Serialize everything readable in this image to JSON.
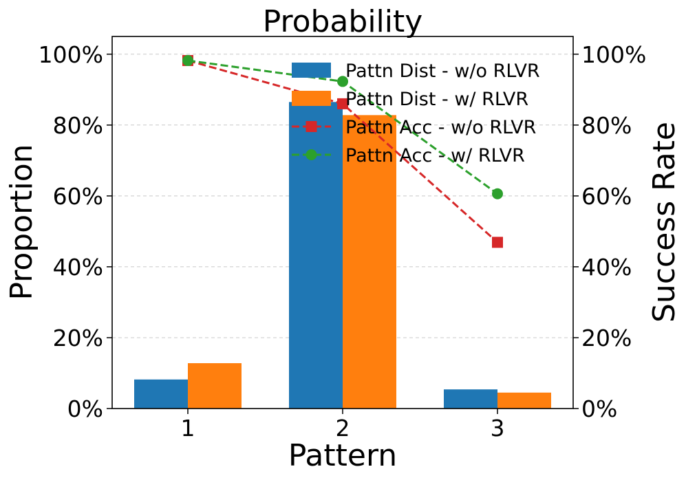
{
  "chart_data": {
    "type": "bar",
    "title": "Probability",
    "xlabel": "Pattern",
    "ylabel": "Proportion",
    "ylabel_right": "Success Rate",
    "categories": [
      "1",
      "2",
      "3"
    ],
    "ylim": [
      0,
      105
    ],
    "ylim_right": [
      0,
      105
    ],
    "y_ticks": [
      "0%",
      "20%",
      "40%",
      "60%",
      "80%",
      "100%"
    ],
    "y_tick_values": [
      0,
      20,
      40,
      60,
      80,
      100
    ],
    "grid": true,
    "legend_position": "top-right",
    "series": [
      {
        "name": "Pattn Dist - w/o RLVR",
        "kind": "bar",
        "axis": "left",
        "color": "#1f77b4",
        "values": [
          8.2,
          86.5,
          5.4
        ]
      },
      {
        "name": "Pattn Dist - w/ RLVR",
        "kind": "bar",
        "axis": "left",
        "color": "#ff7f0e",
        "values": [
          12.8,
          82.8,
          4.5
        ]
      },
      {
        "name": "Pattn Acc - w/o RLVR",
        "kind": "line",
        "axis": "right",
        "marker": "square",
        "style": "dashed",
        "color": "#d62728",
        "values": [
          98.2,
          86.0,
          46.9
        ]
      },
      {
        "name": "Pattn Acc - w/ RLVR",
        "kind": "line",
        "axis": "right",
        "marker": "circle",
        "style": "dashed",
        "color": "#2ca02c",
        "values": [
          98.2,
          92.3,
          60.6
        ]
      }
    ]
  }
}
